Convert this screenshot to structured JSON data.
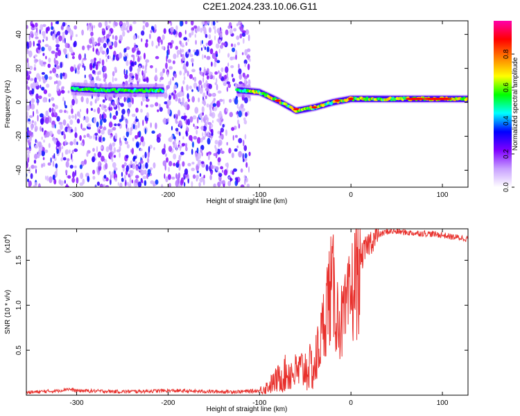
{
  "title": "C2E1.2024.233.10.06.G11",
  "chart_data": [
    {
      "type": "heatmap",
      "xlabel": "Height of straight line (km)",
      "ylabel": "Frequency (Hz)",
      "xlim": [
        -355,
        128
      ],
      "ylim": [
        -50,
        48
      ],
      "xticks": [
        -300,
        -200,
        -100,
        0,
        100
      ],
      "yticks": [
        -40,
        -20,
        0,
        20,
        40
      ],
      "colorbar": {
        "label": "Normalized spectral amplitude",
        "range": [
          0,
          1
        ],
        "ticks": [
          "0.0",
          "0.2",
          "0.4",
          "0.6",
          "0.8"
        ],
        "tick_values": [
          0,
          0.2,
          0.4,
          0.6,
          0.8
        ],
        "colors": [
          "#ffffff",
          "#c8a0ff",
          "#7f00ff",
          "#0000ff",
          "#00ffff",
          "#00ff00",
          "#ffff00",
          "#ff8000",
          "#ff0000",
          "#ff00aa"
        ]
      },
      "features": {
        "noise_region_x": [
          -355,
          -110
        ],
        "ridge": [
          {
            "x": -305,
            "y": 8
          },
          {
            "x": -270,
            "y": 7
          },
          {
            "x": -210,
            "y": 7
          },
          {
            "x": -120,
            "y": 7
          },
          {
            "x": -100,
            "y": 6
          },
          {
            "x": -80,
            "y": 1
          },
          {
            "x": -60,
            "y": -5
          },
          {
            "x": -40,
            "y": -3
          },
          {
            "x": -20,
            "y": 0
          },
          {
            "x": 0,
            "y": 2
          },
          {
            "x": 50,
            "y": 2
          },
          {
            "x": 128,
            "y": 2
          }
        ]
      }
    },
    {
      "type": "line",
      "xlabel": "Height of straight line (km)",
      "ylabel": "SNR (10 * v/v)",
      "y_multiplier": "(x10",
      "y_multiplier_exp": "4",
      "y_multiplier_close": ")",
      "xlim": [
        -355,
        128
      ],
      "ylim": [
        0,
        1.85
      ],
      "xticks": [
        -300,
        -200,
        -100,
        0,
        100
      ],
      "yticks": [
        "0.5",
        "1.0",
        "1.5"
      ],
      "ytick_values": [
        0.5,
        1.0,
        1.5
      ],
      "color": "#e8302c",
      "series": [
        {
          "x": [
            -355,
            -320,
            -310,
            -300,
            -250,
            -200,
            -150,
            -120,
            -100,
            -90,
            -80,
            -70,
            -60,
            -50,
            -40,
            -35,
            -30,
            -25,
            -20,
            -15,
            -10,
            -5,
            0,
            5,
            10,
            20,
            30,
            40,
            50,
            60,
            70,
            80,
            90,
            100,
            110,
            120,
            128
          ],
          "y": [
            0.03,
            0.05,
            0.07,
            0.05,
            0.04,
            0.05,
            0.04,
            0.04,
            0.05,
            0.1,
            0.18,
            0.25,
            0.25,
            0.3,
            0.3,
            0.5,
            0.8,
            1.1,
            1.2,
            0.9,
            0.8,
            0.9,
            1.1,
            1.3,
            1.5,
            1.7,
            1.78,
            1.82,
            1.82,
            1.81,
            1.8,
            1.8,
            1.79,
            1.78,
            1.76,
            1.75,
            1.74
          ]
        }
      ]
    }
  ]
}
